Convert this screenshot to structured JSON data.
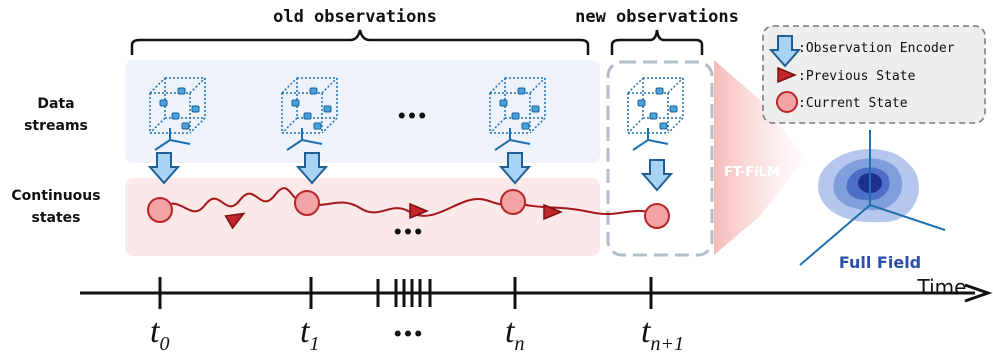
{
  "header": {
    "old": "old observations",
    "new": "new observations"
  },
  "rows": {
    "data": [
      "Data",
      "streams"
    ],
    "states": [
      "Continuous",
      "states"
    ]
  },
  "ellipsis": "•••",
  "legend": {
    "encoder": ":Observation Encoder",
    "previous": ":Previous State",
    "current": ":Current State"
  },
  "model": "FT-FiLM",
  "output": "Full Field",
  "timeline": {
    "label": "Time",
    "ticks": [
      {
        "t": "t",
        "sub": "0"
      },
      {
        "t": "t",
        "sub": "1"
      },
      {
        "t": "t",
        "sub": "n"
      },
      {
        "t": "t",
        "sub": "n+1"
      }
    ]
  }
}
